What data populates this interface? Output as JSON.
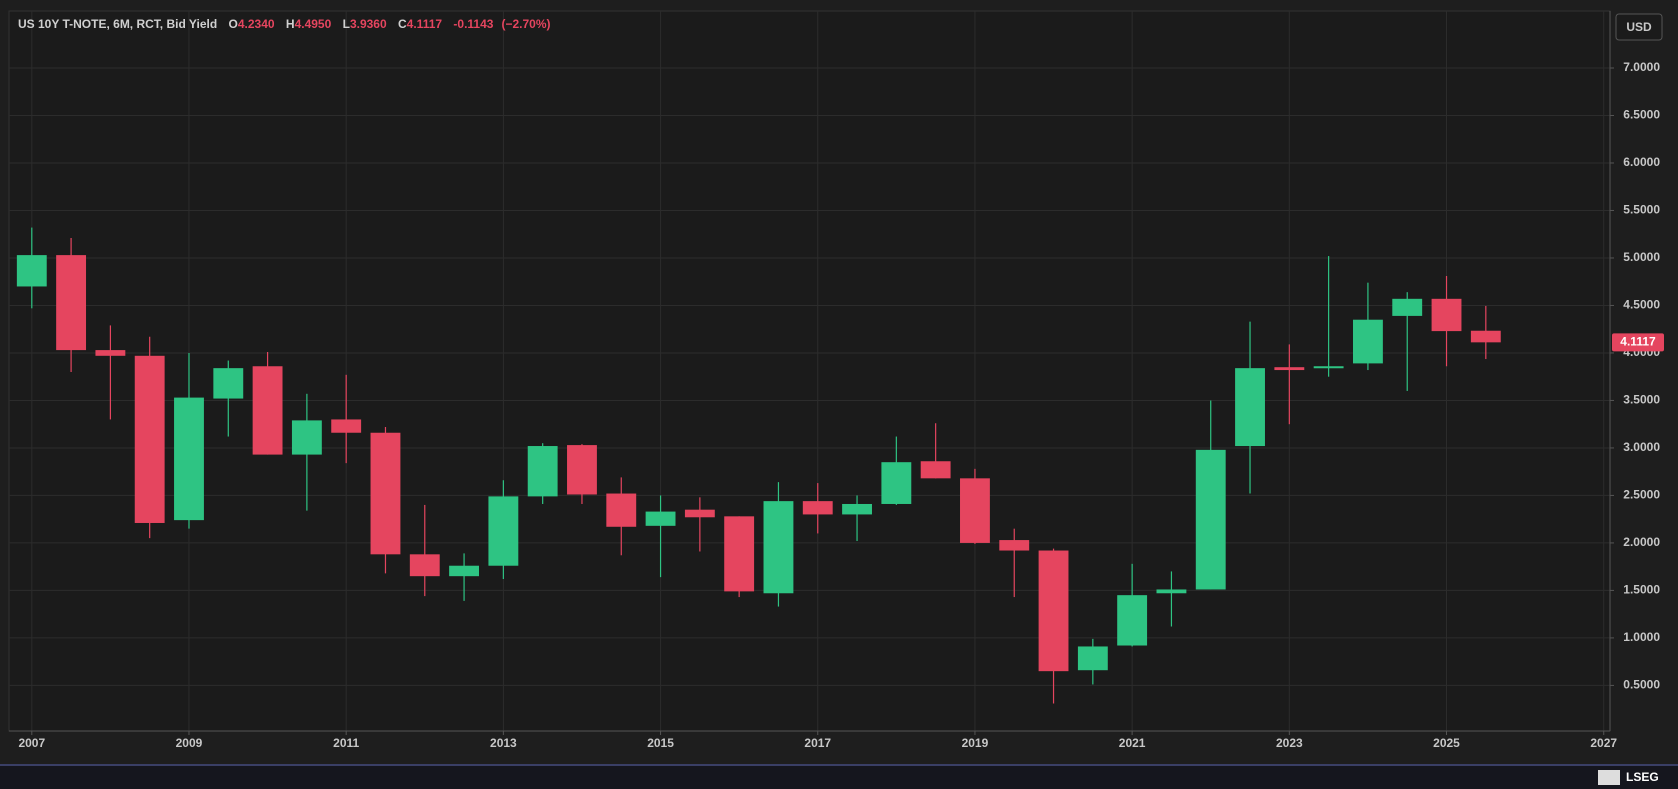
{
  "chart_data": {
    "type": "candlestick",
    "title": "US 10Y T-NOTE, 6M, RCT, Bid Yield",
    "ohlc_legend": [
      {
        "key": "O",
        "value": "4.2340"
      },
      {
        "key": "H",
        "value": "4.4950"
      },
      {
        "key": "L",
        "value": "3.9360"
      },
      {
        "key": "C",
        "value": "4.1117"
      }
    ],
    "change": "-0.1143",
    "change_pct": "(−2.70%)",
    "currency": "USD",
    "brand": "LSEG",
    "x": [
      2007,
      2007.5,
      2008,
      2008.5,
      2009,
      2009.5,
      2010,
      2010.5,
      2011,
      2011.5,
      2012,
      2012.5,
      2013,
      2013.5,
      2014,
      2014.5,
      2015,
      2015.5,
      2016,
      2016.5,
      2017,
      2017.5,
      2018,
      2018.5,
      2019,
      2019.5,
      2020,
      2020.5,
      2021,
      2021.5,
      2022,
      2022.5,
      2023,
      2023.5,
      2024,
      2024.5,
      2025,
      2025.5
    ],
    "series": [
      {
        "up_color": "#2ec483",
        "down_color": "#e5455f",
        "open": [
          4.7,
          5.03,
          4.03,
          3.97,
          2.24,
          3.52,
          3.86,
          2.93,
          3.3,
          3.16,
          1.88,
          1.65,
          1.76,
          2.49,
          3.03,
          2.52,
          2.18,
          2.35,
          2.28,
          1.47,
          2.44,
          2.3,
          2.41,
          2.86,
          2.68,
          2.03,
          1.92,
          0.66,
          0.92,
          1.47,
          1.51,
          3.02,
          3.85,
          3.84,
          3.89,
          4.39,
          4.57,
          4.234
        ],
        "high": [
          5.32,
          5.21,
          4.29,
          4.17,
          4.0,
          3.92,
          4.01,
          3.57,
          3.77,
          3.22,
          2.4,
          1.89,
          2.66,
          3.05,
          3.04,
          2.69,
          2.5,
          2.48,
          2.28,
          2.64,
          2.63,
          2.5,
          3.12,
          3.26,
          2.78,
          2.15,
          1.94,
          0.99,
          1.78,
          1.7,
          3.5,
          4.33,
          4.09,
          5.02,
          4.74,
          4.64,
          4.81,
          4.495
        ],
        "low": [
          4.47,
          3.8,
          3.3,
          2.05,
          2.15,
          3.12,
          2.93,
          2.34,
          2.84,
          1.68,
          1.44,
          1.39,
          1.62,
          2.41,
          2.41,
          1.87,
          1.64,
          1.91,
          1.43,
          1.33,
          2.1,
          2.02,
          2.4,
          2.68,
          1.99,
          1.43,
          0.31,
          0.51,
          0.91,
          1.12,
          1.51,
          2.52,
          3.25,
          3.75,
          3.82,
          3.6,
          3.86,
          3.936
        ],
        "close": [
          5.03,
          4.03,
          3.97,
          2.21,
          3.53,
          3.84,
          2.93,
          3.29,
          3.16,
          1.88,
          1.65,
          1.76,
          2.49,
          3.02,
          2.51,
          2.17,
          2.33,
          2.27,
          1.49,
          2.44,
          2.3,
          2.41,
          2.85,
          2.68,
          2.0,
          1.92,
          0.65,
          0.91,
          1.45,
          1.51,
          2.98,
          3.84,
          3.82,
          3.86,
          4.35,
          4.57,
          4.23,
          4.1117
        ]
      }
    ],
    "last_price": {
      "value": 4.1117,
      "label": "4.1117"
    },
    "xlim": [
      2006.71,
      2027.08
    ],
    "xticks": [
      2007,
      2009,
      2011,
      2013,
      2015,
      2017,
      2019,
      2021,
      2023,
      2025,
      2027
    ],
    "ylim": [
      0.02,
      7.6
    ],
    "yticks": [
      {
        "value": 0.5,
        "label": "0.5000"
      },
      {
        "value": 1,
        "label": "1.0000"
      },
      {
        "value": 1.5,
        "label": "1.5000"
      },
      {
        "value": 2,
        "label": "2.0000"
      },
      {
        "value": 2.5,
        "label": "2.5000"
      },
      {
        "value": 3,
        "label": "3.0000"
      },
      {
        "value": 3.5,
        "label": "3.5000"
      },
      {
        "value": 4,
        "label": "4.0000"
      },
      {
        "value": 4.5,
        "label": "4.5000"
      },
      {
        "value": 5,
        "label": "5.0000"
      },
      {
        "value": 5.5,
        "label": "5.5000"
      },
      {
        "value": 6,
        "label": "6.0000"
      },
      {
        "value": 6.5,
        "label": "6.5000"
      },
      {
        "value": 7,
        "label": "7.0000"
      }
    ],
    "grid": true
  }
}
